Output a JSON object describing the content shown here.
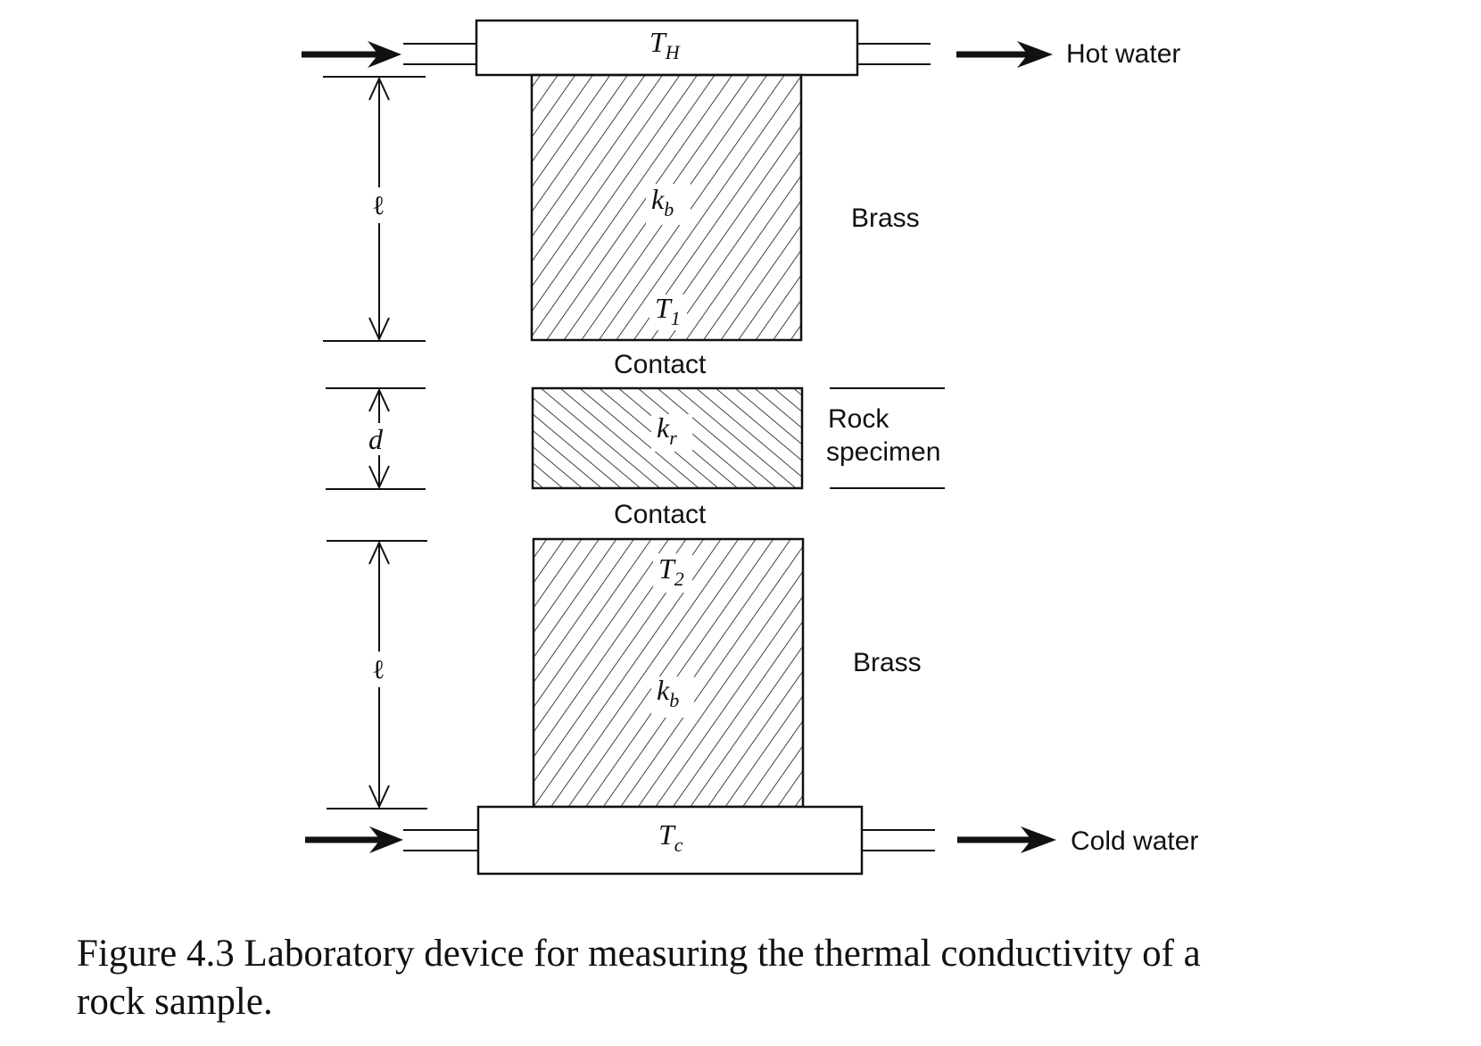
{
  "diagram": {
    "hot_bath": {
      "symbol": "T",
      "subscript": "H",
      "label": "Hot water"
    },
    "cold_bath": {
      "symbol": "T",
      "subscript": "c",
      "label": "Cold water"
    },
    "upper_brass": {
      "label": "Brass",
      "k_symbol": "k",
      "k_subscript": "b",
      "temp_symbol": "T",
      "temp_subscript": "1"
    },
    "lower_brass": {
      "label": "Brass",
      "k_symbol": "k",
      "k_subscript": "b",
      "temp_symbol": "T",
      "temp_subscript": "2"
    },
    "rock": {
      "label_line1": "Rock",
      "label_line2": "specimen",
      "k_symbol": "k",
      "k_subscript": "r"
    },
    "contact_top": "Contact",
    "contact_bottom": "Contact",
    "dim_upper": "ℓ",
    "dim_rock": "d",
    "dim_lower": "ℓ"
  },
  "caption": {
    "line1": "Figure 4.3  Laboratory device for measuring the thermal conductivity of a",
    "line2": "rock sample."
  }
}
